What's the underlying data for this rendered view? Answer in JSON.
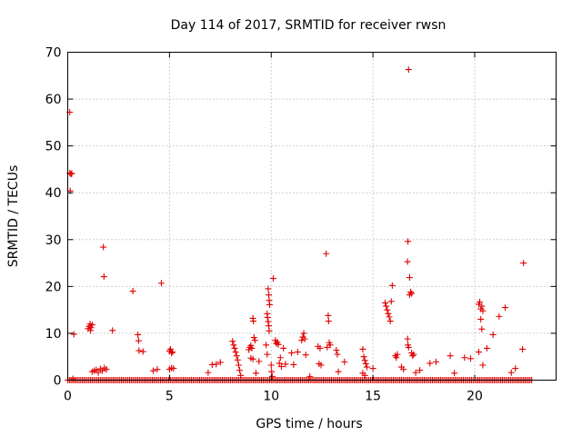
{
  "chart_data": {
    "type": "scatter",
    "title": "Day 114 of 2017, SRMTID for receiver rwsn",
    "xlabel": "GPS time / hours",
    "ylabel": "SRMTID / TECUs",
    "xlim": [
      0,
      24
    ],
    "ylim": [
      0,
      70
    ],
    "xticks": [
      0,
      5,
      10,
      15,
      20
    ],
    "yticks": [
      0,
      10,
      20,
      30,
      40,
      50,
      60,
      70
    ],
    "grid": true,
    "marker": "+",
    "marker_color": "#e00000",
    "baseline_zero": {
      "x_start": 0.0,
      "x_end": 22.8,
      "step": 0.08,
      "y": 0
    },
    "series": [
      {
        "name": "rwsn",
        "points": [
          [
            0.1,
            57.2
          ],
          [
            0.1,
            44.2
          ],
          [
            0.15,
            44.0
          ],
          [
            0.2,
            44.1
          ],
          [
            0.12,
            40.4
          ],
          [
            0.3,
            9.8
          ],
          [
            0.25,
            0.3
          ],
          [
            1.0,
            11.0
          ],
          [
            1.05,
            11.5
          ],
          [
            1.1,
            12.0
          ],
          [
            1.15,
            11.2
          ],
          [
            1.2,
            11.8
          ],
          [
            1.12,
            10.6
          ],
          [
            1.2,
            1.8
          ],
          [
            1.3,
            2.0
          ],
          [
            1.4,
            2.2
          ],
          [
            1.5,
            1.6
          ],
          [
            1.6,
            2.4
          ],
          [
            1.7,
            2.0
          ],
          [
            1.8,
            2.6
          ],
          [
            1.9,
            2.3
          ],
          [
            1.75,
            28.4
          ],
          [
            1.78,
            22.1
          ],
          [
            2.2,
            10.6
          ],
          [
            3.2,
            19.0
          ],
          [
            3.45,
            9.7
          ],
          [
            3.48,
            8.4
          ],
          [
            3.5,
            6.3
          ],
          [
            3.7,
            6.1
          ],
          [
            4.2,
            2.0
          ],
          [
            4.4,
            2.3
          ],
          [
            4.6,
            20.7
          ],
          [
            5.0,
            6.2
          ],
          [
            5.05,
            6.6
          ],
          [
            5.1,
            5.8
          ],
          [
            5.15,
            6.0
          ],
          [
            5.0,
            2.3
          ],
          [
            5.1,
            2.6
          ],
          [
            5.2,
            2.5
          ],
          [
            6.9,
            1.6
          ],
          [
            7.1,
            3.3
          ],
          [
            7.3,
            3.4
          ],
          [
            7.5,
            3.8
          ],
          [
            8.1,
            8.3
          ],
          [
            8.15,
            7.5
          ],
          [
            8.2,
            6.8
          ],
          [
            8.25,
            6.0
          ],
          [
            8.3,
            5.2
          ],
          [
            8.35,
            4.3
          ],
          [
            8.4,
            3.2
          ],
          [
            8.45,
            2.1
          ],
          [
            8.5,
            1.0
          ],
          [
            8.9,
            6.5
          ],
          [
            8.95,
            7.0
          ],
          [
            9.0,
            7.4
          ],
          [
            9.05,
            6.8
          ],
          [
            9.1,
            13.2
          ],
          [
            9.12,
            12.6
          ],
          [
            9.15,
            9.1
          ],
          [
            9.2,
            8.5
          ],
          [
            9.0,
            4.7
          ],
          [
            9.1,
            4.5
          ],
          [
            9.25,
            1.5
          ],
          [
            9.4,
            4.0
          ],
          [
            9.85,
            19.5
          ],
          [
            9.88,
            18.2
          ],
          [
            9.9,
            17.0
          ],
          [
            9.92,
            16.1
          ],
          [
            9.8,
            14.2
          ],
          [
            9.82,
            13.4
          ],
          [
            9.85,
            12.5
          ],
          [
            9.88,
            11.6
          ],
          [
            9.9,
            10.5
          ],
          [
            9.75,
            7.5
          ],
          [
            9.8,
            5.5
          ],
          [
            10.0,
            3.2
          ],
          [
            10.02,
            1.8
          ],
          [
            10.05,
            0.8
          ],
          [
            10.1,
            21.7
          ],
          [
            10.2,
            8.5
          ],
          [
            10.25,
            7.8
          ],
          [
            10.3,
            8.1
          ],
          [
            10.35,
            7.6
          ],
          [
            10.4,
            3.6
          ],
          [
            10.45,
            4.8
          ],
          [
            10.5,
            2.9
          ],
          [
            10.6,
            6.8
          ],
          [
            10.7,
            3.4
          ],
          [
            11.0,
            5.8
          ],
          [
            11.1,
            3.3
          ],
          [
            11.3,
            6.0
          ],
          [
            11.5,
            8.5
          ],
          [
            11.55,
            9.2
          ],
          [
            11.6,
            10.0
          ],
          [
            11.65,
            8.8
          ],
          [
            11.7,
            5.4
          ],
          [
            11.9,
            0.8
          ],
          [
            12.3,
            7.2
          ],
          [
            12.4,
            6.8
          ],
          [
            12.35,
            3.5
          ],
          [
            12.45,
            3.2
          ],
          [
            12.7,
            27.0
          ],
          [
            12.8,
            13.8
          ],
          [
            12.82,
            12.6
          ],
          [
            12.85,
            8.0
          ],
          [
            12.9,
            7.5
          ],
          [
            12.75,
            7.0
          ],
          [
            13.2,
            6.4
          ],
          [
            13.25,
            5.5
          ],
          [
            13.3,
            1.8
          ],
          [
            13.6,
            3.9
          ],
          [
            14.5,
            6.6
          ],
          [
            14.55,
            5.0
          ],
          [
            14.6,
            4.2
          ],
          [
            14.65,
            3.5
          ],
          [
            14.7,
            2.8
          ],
          [
            14.5,
            1.5
          ],
          [
            14.6,
            1.0
          ],
          [
            15.0,
            2.5
          ],
          [
            15.6,
            16.5
          ],
          [
            15.65,
            15.8
          ],
          [
            15.7,
            15.0
          ],
          [
            15.75,
            14.2
          ],
          [
            15.8,
            13.5
          ],
          [
            15.85,
            12.6
          ],
          [
            15.9,
            16.8
          ],
          [
            15.95,
            20.2
          ],
          [
            16.1,
            5.2
          ],
          [
            16.15,
            4.8
          ],
          [
            16.2,
            5.5
          ],
          [
            16.4,
            2.8
          ],
          [
            16.5,
            2.3
          ],
          [
            16.75,
            66.3
          ],
          [
            16.72,
            29.6
          ],
          [
            16.7,
            25.3
          ],
          [
            16.8,
            21.9
          ],
          [
            16.85,
            18.8
          ],
          [
            16.9,
            18.5
          ],
          [
            16.8,
            18.2
          ],
          [
            16.7,
            8.8
          ],
          [
            16.72,
            7.5
          ],
          [
            16.75,
            7.0
          ],
          [
            16.9,
            5.8
          ],
          [
            16.95,
            5.2
          ],
          [
            17.0,
            5.5
          ],
          [
            17.1,
            1.6
          ],
          [
            17.3,
            2.1
          ],
          [
            17.8,
            3.6
          ],
          [
            18.1,
            3.9
          ],
          [
            18.8,
            5.2
          ],
          [
            19.0,
            1.5
          ],
          [
            19.5,
            4.8
          ],
          [
            19.8,
            4.6
          ],
          [
            20.2,
            16.2
          ],
          [
            20.25,
            16.7
          ],
          [
            20.3,
            15.2
          ],
          [
            20.35,
            15.8
          ],
          [
            20.4,
            14.8
          ],
          [
            20.3,
            13.0
          ],
          [
            20.35,
            10.9
          ],
          [
            20.2,
            6.0
          ],
          [
            20.4,
            3.2
          ],
          [
            20.6,
            6.8
          ],
          [
            20.9,
            9.7
          ],
          [
            21.2,
            13.6
          ],
          [
            21.5,
            15.5
          ],
          [
            21.8,
            1.6
          ],
          [
            22.0,
            2.5
          ],
          [
            22.4,
            25.0
          ],
          [
            22.35,
            6.6
          ]
        ]
      }
    ]
  }
}
